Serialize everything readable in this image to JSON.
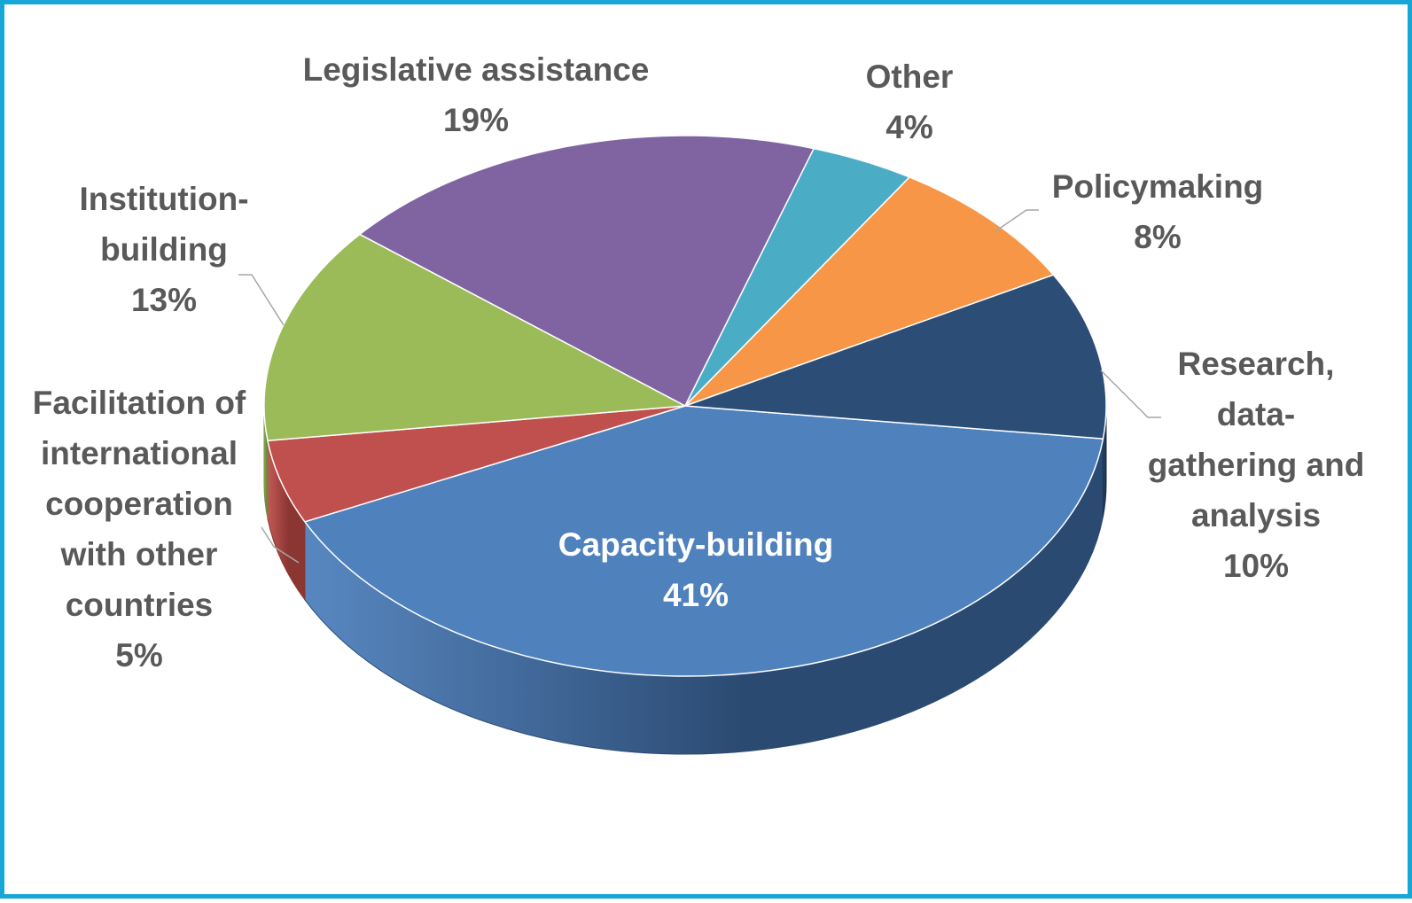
{
  "chart_data": {
    "type": "pie",
    "style": "3d",
    "title": "",
    "slices": [
      {
        "label": "Capacity-building",
        "value": 41,
        "display": "41%",
        "color": "#4f81bd",
        "side_color": "#2b4a72",
        "label_lines": [
          "Capacity-building"
        ]
      },
      {
        "label": "Facilitation of international cooperation with other countries",
        "value": 5,
        "display": "5%",
        "color": "#c0504d",
        "side_color": "#8c3633",
        "label_lines": [
          "Facilitation of",
          "international",
          "cooperation",
          "with other",
          "countries"
        ]
      },
      {
        "label": "Institution-building",
        "value": 13,
        "display": "13%",
        "color": "#9bbb59",
        "side_color": "#6f8a3c",
        "label_lines": [
          "Institution-",
          "building"
        ]
      },
      {
        "label": "Legislative assistance",
        "value": 19,
        "display": "19%",
        "color": "#8064a2",
        "side_color": "#5a4673",
        "label_lines": [
          "Legislative assistance"
        ]
      },
      {
        "label": "Other",
        "value": 4,
        "display": "4%",
        "color": "#4bacc6",
        "side_color": "#2f7a8e",
        "label_lines": [
          "Other"
        ]
      },
      {
        "label": "Policymaking",
        "value": 8,
        "display": "8%",
        "color": "#f79646",
        "side_color": "#b56a2b",
        "label_lines": [
          "Policymaking"
        ]
      },
      {
        "label": "Research, data-gathering and analysis",
        "value": 10,
        "display": "10%",
        "color": "#2c4d75",
        "side_color": "#1b3150",
        "label_lines": [
          "Research,",
          "data-",
          "gathering and",
          "analysis"
        ]
      }
    ]
  }
}
